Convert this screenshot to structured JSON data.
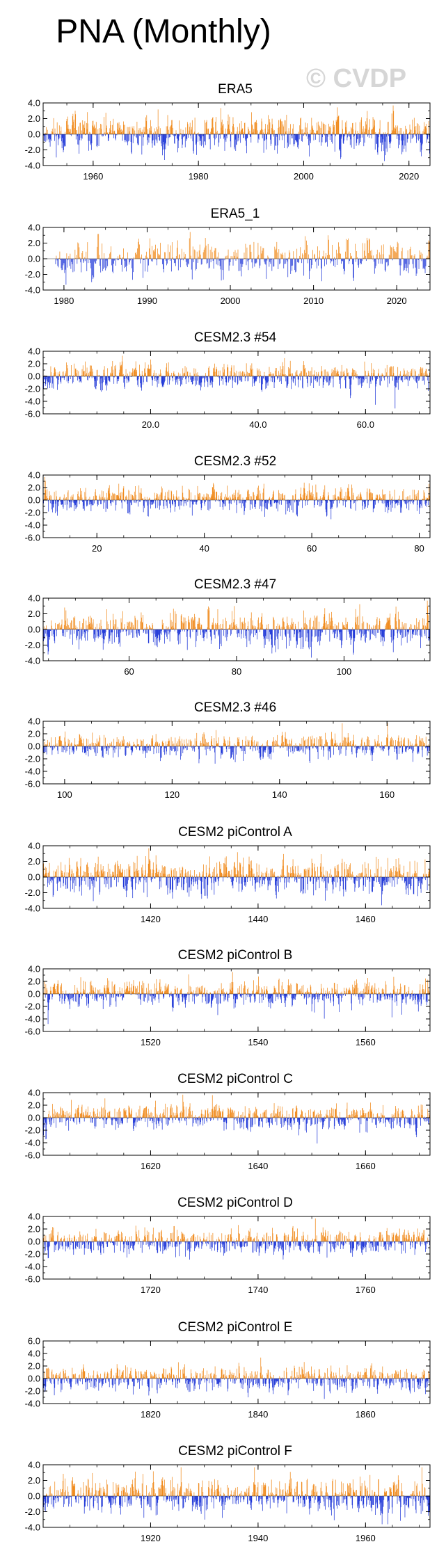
{
  "page": {
    "title": "PNA (Monthly)",
    "watermark": "© CVDP"
  },
  "colors": {
    "positive": "#f08a1c",
    "negative": "#2038d8",
    "axis": "#000000"
  },
  "chart_data": [
    {
      "type": "bar",
      "title": "ERA5",
      "ylim": [
        -4,
        4
      ],
      "yticks": [
        "4.0",
        "2.0",
        "0.0",
        "-2.0",
        "-4.0"
      ],
      "xlim": [
        1950.5,
        2024.0
      ],
      "xticks": [
        1960,
        1980,
        2000,
        2020
      ],
      "xticklabels": [
        "1960",
        "1980",
        "2000",
        "2020"
      ],
      "data_start": 1950,
      "data_end": 2024,
      "amplitude": 2.2,
      "seed": 11
    },
    {
      "type": "bar",
      "title": "ERA5_1",
      "ylim": [
        -4,
        4
      ],
      "yticks": [
        "4.0",
        "2.0",
        "0.0",
        "-2.0",
        "-4.0"
      ],
      "xlim": [
        1977.5,
        2024.0
      ],
      "xticks": [
        1980,
        1990,
        2000,
        2010,
        2020
      ],
      "xticklabels": [
        "1980",
        "1990",
        "2000",
        "2010",
        "2020"
      ],
      "data_start": 1979,
      "data_end": 2024,
      "amplitude": 2.3,
      "seed": 23
    },
    {
      "type": "bar",
      "title": "CESM2.3 #54",
      "ylim": [
        -6,
        4
      ],
      "yticks": [
        "4.0",
        "2.0",
        "0.0",
        "-2.0",
        "-4.0",
        "-6.0"
      ],
      "xlim": [
        0,
        72
      ],
      "xticks": [
        20,
        40,
        60
      ],
      "xticklabels": [
        "20.0",
        "40.0",
        "60.0"
      ],
      "data_start": 0,
      "data_end": 72,
      "amplitude": 2.0,
      "seed": 37
    },
    {
      "type": "bar",
      "title": "CESM2.3 #52",
      "ylim": [
        -6,
        4
      ],
      "yticks": [
        "4.0",
        "2.0",
        "0.0",
        "-2.0",
        "-4.0",
        "-6.0"
      ],
      "xlim": [
        10,
        82
      ],
      "xticks": [
        20,
        40,
        60,
        80
      ],
      "xticklabels": [
        "20",
        "40",
        "60",
        "80"
      ],
      "data_start": 10,
      "data_end": 82,
      "amplitude": 2.0,
      "seed": 41
    },
    {
      "type": "bar",
      "title": "CESM2.3 #47",
      "ylim": [
        -4,
        4
      ],
      "yticks": [
        "4.0",
        "2.0",
        "0.0",
        "-2.0",
        "-4.0"
      ],
      "xlim": [
        44,
        116
      ],
      "xticks": [
        60,
        80,
        100
      ],
      "xticklabels": [
        "60",
        "80",
        "100"
      ],
      "data_start": 44,
      "data_end": 116,
      "amplitude": 2.2,
      "seed": 53
    },
    {
      "type": "bar",
      "title": "CESM2.3 #46",
      "ylim": [
        -6,
        4
      ],
      "yticks": [
        "4.0",
        "2.0",
        "0.0",
        "-2.0",
        "-4.0",
        "-6.0"
      ],
      "xlim": [
        96,
        168
      ],
      "xticks": [
        100,
        120,
        140,
        160
      ],
      "xticklabels": [
        "100",
        "120",
        "140",
        "160"
      ],
      "data_start": 96,
      "data_end": 168,
      "amplitude": 1.9,
      "seed": 61
    },
    {
      "type": "bar",
      "title": "CESM2 piControl A",
      "ylim": [
        -4,
        4
      ],
      "yticks": [
        "4.0",
        "2.0",
        "0.0",
        "-2.0",
        "-4.0"
      ],
      "xlim": [
        1400,
        1472
      ],
      "xticks": [
        1420,
        1440,
        1460
      ],
      "xticklabels": [
        "1420",
        "1440",
        "1460"
      ],
      "data_start": 1400,
      "data_end": 1472,
      "amplitude": 2.2,
      "seed": 71
    },
    {
      "type": "bar",
      "title": "CESM2 piControl B",
      "ylim": [
        -6,
        4
      ],
      "yticks": [
        "4.0",
        "2.0",
        "0.0",
        "-2.0",
        "-4.0",
        "-6.0"
      ],
      "xlim": [
        1500,
        1572
      ],
      "xticks": [
        1520,
        1540,
        1560
      ],
      "xticklabels": [
        "1520",
        "1540",
        "1560"
      ],
      "data_start": 1500,
      "data_end": 1572,
      "amplitude": 2.0,
      "seed": 83
    },
    {
      "type": "bar",
      "title": "CESM2 piControl C",
      "ylim": [
        -6,
        4
      ],
      "yticks": [
        "4.0",
        "2.0",
        "0.0",
        "-2.0",
        "-4.0",
        "-6.0"
      ],
      "xlim": [
        1600,
        1672
      ],
      "xticks": [
        1620,
        1640,
        1660
      ],
      "xticklabels": [
        "1620",
        "1640",
        "1660"
      ],
      "data_start": 1600,
      "data_end": 1672,
      "amplitude": 2.0,
      "seed": 97
    },
    {
      "type": "bar",
      "title": "CESM2 piControl D",
      "ylim": [
        -6,
        4
      ],
      "yticks": [
        "4.0",
        "2.0",
        "0.0",
        "-2.0",
        "-4.0",
        "-6.0"
      ],
      "xlim": [
        1700,
        1772
      ],
      "xticks": [
        1720,
        1740,
        1760
      ],
      "xticklabels": [
        "1720",
        "1740",
        "1760"
      ],
      "data_start": 1700,
      "data_end": 1772,
      "amplitude": 2.0,
      "seed": 101
    },
    {
      "type": "bar",
      "title": "CESM2 piControl E",
      "ylim": [
        -4,
        6
      ],
      "yticks": [
        "6.0",
        "4.0",
        "2.0",
        "0.0",
        "-2.0",
        "-4.0"
      ],
      "xlim": [
        1800,
        1872
      ],
      "xticks": [
        1820,
        1840,
        1860
      ],
      "xticklabels": [
        "1820",
        "1840",
        "1860"
      ],
      "data_start": 1800,
      "data_end": 1872,
      "amplitude": 2.0,
      "seed": 113
    },
    {
      "type": "bar",
      "title": "CESM2 piControl F",
      "ylim": [
        -4,
        4
      ],
      "yticks": [
        "4.0",
        "2.0",
        "0.0",
        "-2.0",
        "-4.0"
      ],
      "xlim": [
        1900,
        1972
      ],
      "xticks": [
        1920,
        1940,
        1960
      ],
      "xticklabels": [
        "1920",
        "1940",
        "1960"
      ],
      "data_start": 1900,
      "data_end": 1972,
      "amplitude": 2.2,
      "seed": 127
    }
  ]
}
